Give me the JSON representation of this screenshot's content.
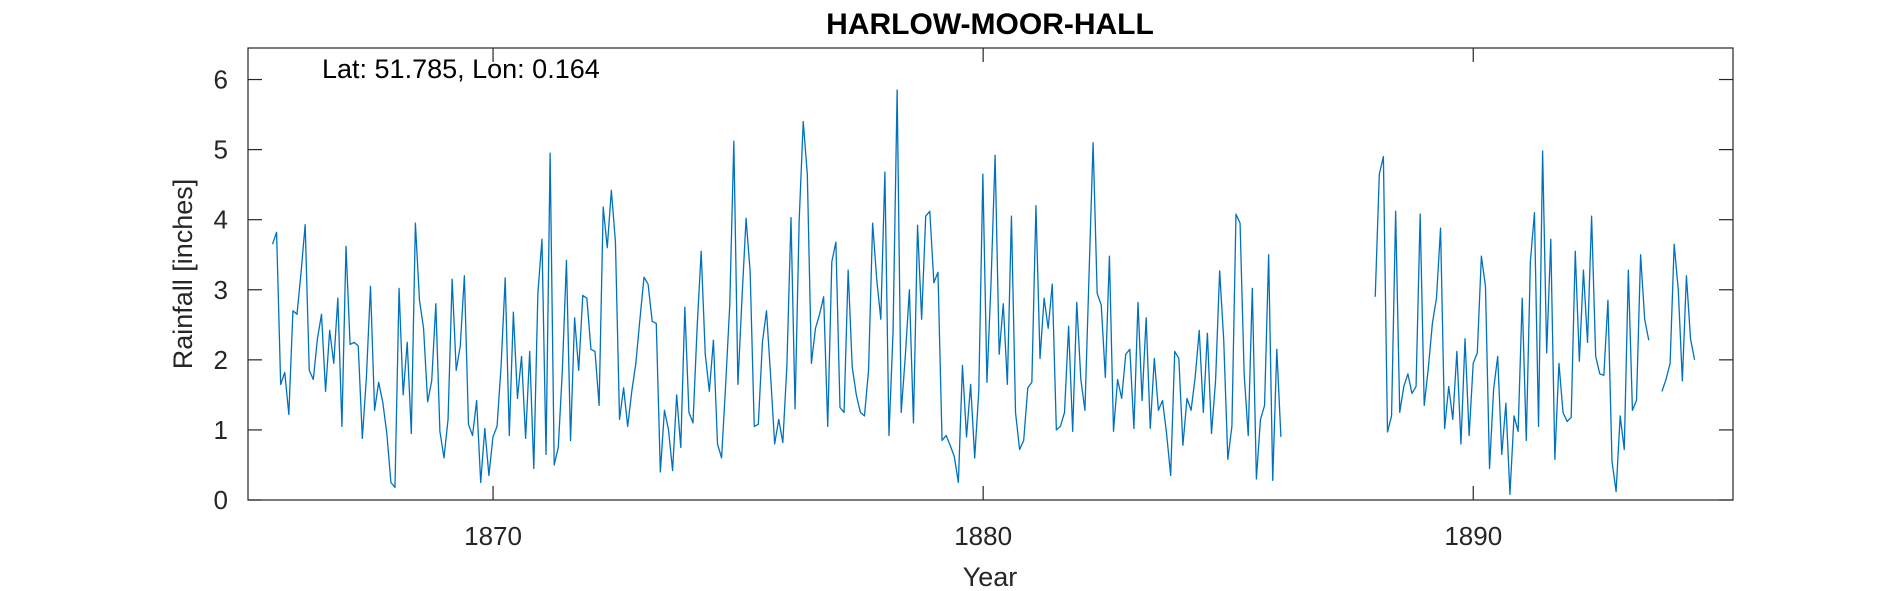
{
  "chart_data": {
    "type": "line",
    "title": "HARLOW-MOOR-HALL",
    "annotation": "Lat: 51.785, Lon: 0.164",
    "xlabel": "Year",
    "ylabel": "Rainfall [inches]",
    "xlim": [
      1865,
      1895.3
    ],
    "ylim": [
      0,
      6.45
    ],
    "xticks": [
      1870,
      1880,
      1890
    ],
    "xtick_labels": [
      "1870",
      "1880",
      "1890"
    ],
    "yticks": [
      0,
      1,
      2,
      3,
      4,
      5,
      6
    ],
    "ytick_labels": [
      "0",
      "1",
      "2",
      "3",
      "4",
      "5",
      "6"
    ],
    "grid": false,
    "line_color": "#0072BD",
    "series": [
      {
        "start_year": 1865.5,
        "step_years": 0.0833,
        "values": [
          3.65,
          3.82,
          1.65,
          1.82,
          1.22,
          2.7,
          2.65,
          3.25,
          3.93,
          1.85,
          1.72,
          2.3,
          2.65,
          1.55,
          2.42,
          1.95,
          2.88,
          1.05,
          3.62,
          2.22,
          2.25,
          2.2,
          0.88,
          1.75,
          3.05,
          1.28,
          1.68,
          1.4,
          0.95,
          0.25,
          0.18,
          3.02,
          1.5,
          2.25,
          0.95,
          3.95,
          2.85,
          2.45,
          1.4,
          1.7,
          2.8,
          0.98,
          0.6,
          1.15,
          3.15,
          1.85,
          2.2,
          3.2,
          1.08,
          0.92,
          1.42,
          0.25,
          1.02,
          0.35,
          0.9,
          1.05,
          1.92,
          3.17,
          0.92,
          2.68,
          1.45,
          2.05,
          0.88,
          2.12,
          0.45,
          2.95,
          3.72,
          0.65,
          4.95,
          0.5,
          0.75,
          1.85,
          3.42,
          0.85,
          2.6,
          1.85,
          2.92,
          2.88,
          2.15,
          2.12,
          1.35,
          4.18,
          3.6,
          4.42,
          3.68,
          1.15,
          1.6,
          1.05,
          1.55,
          1.95,
          2.58,
          3.18,
          3.08,
          2.55,
          2.52,
          0.4,
          1.28,
          1.0,
          0.42,
          1.5,
          0.75,
          2.75,
          1.25,
          1.1,
          2.45,
          3.55,
          2.08,
          1.55,
          2.28,
          0.8,
          0.6,
          1.65,
          2.78,
          5.12,
          1.65,
          2.88,
          4.02,
          3.25,
          1.05,
          1.08,
          2.25,
          2.7,
          1.78,
          0.8,
          1.15,
          0.82,
          1.92,
          4.03,
          1.3,
          3.98,
          5.4,
          4.65,
          1.95,
          2.45,
          2.65,
          2.9,
          1.05,
          3.4,
          3.68,
          1.32,
          1.25,
          3.28,
          1.9,
          1.5,
          1.25,
          1.2,
          1.85,
          3.95,
          3.15,
          2.58,
          4.68,
          0.92,
          2.4,
          5.85,
          1.25,
          2.05,
          3.0,
          1.1,
          3.92,
          2.58,
          4.05,
          4.12,
          3.1,
          3.25,
          0.85,
          0.92,
          0.78,
          0.62,
          0.25,
          1.92,
          0.9,
          1.65,
          0.6,
          1.55,
          4.65,
          1.68,
          3.1,
          4.92,
          2.08,
          2.8,
          1.65,
          4.05,
          1.25,
          0.72,
          0.85,
          1.6,
          1.68,
          4.2,
          2.02,
          2.88,
          2.45,
          3.08,
          1.0,
          1.05,
          1.25,
          2.48,
          0.98,
          2.82,
          1.72,
          1.28,
          3.2,
          5.1,
          2.95,
          2.78,
          1.75,
          3.48,
          0.98,
          1.72,
          1.45,
          2.08,
          2.15,
          1.02,
          2.82,
          1.42,
          2.6,
          1.02,
          2.02,
          1.28,
          1.42,
          0.95,
          0.35,
          2.12,
          2.02,
          0.78,
          1.45,
          1.28,
          1.75,
          2.42,
          1.25,
          2.38,
          0.95,
          1.7,
          3.27,
          2.28,
          0.58,
          1.05,
          4.08,
          3.95,
          1.8,
          0.92,
          3.02,
          0.3,
          1.15,
          1.35,
          3.5,
          0.28,
          2.15,
          0.9
        ]
      },
      {
        "start_year": 1888.0,
        "step_years": 0.0833,
        "values": [
          2.9,
          4.65,
          4.9,
          0.97,
          1.2,
          4.12,
          1.25,
          1.62,
          1.8,
          1.52,
          1.62,
          4.08,
          1.35,
          1.88,
          2.52,
          2.88,
          3.88,
          1.02,
          1.62,
          1.15,
          2.12,
          0.8,
          2.3,
          0.92,
          1.95,
          2.1,
          3.48,
          3.05,
          0.45,
          1.58,
          2.05,
          0.65,
          1.38,
          0.08,
          1.2,
          0.98,
          2.88,
          0.85,
          3.4,
          4.1,
          1.05,
          4.98,
          2.1,
          3.72,
          0.58,
          1.95,
          1.25,
          1.12,
          1.18,
          3.55,
          1.98,
          3.28,
          2.25,
          4.05,
          2.05,
          1.8,
          1.78,
          2.85,
          0.55,
          0.12,
          1.2,
          0.72,
          3.28,
          1.28,
          1.42,
          3.5,
          2.58,
          2.28
        ]
      },
      {
        "start_year": 1893.85,
        "step_years": 0.0833,
        "values": [
          1.55,
          1.72,
          1.95,
          3.65,
          3.0,
          1.7,
          3.2,
          2.3,
          2.0
        ]
      }
    ]
  }
}
